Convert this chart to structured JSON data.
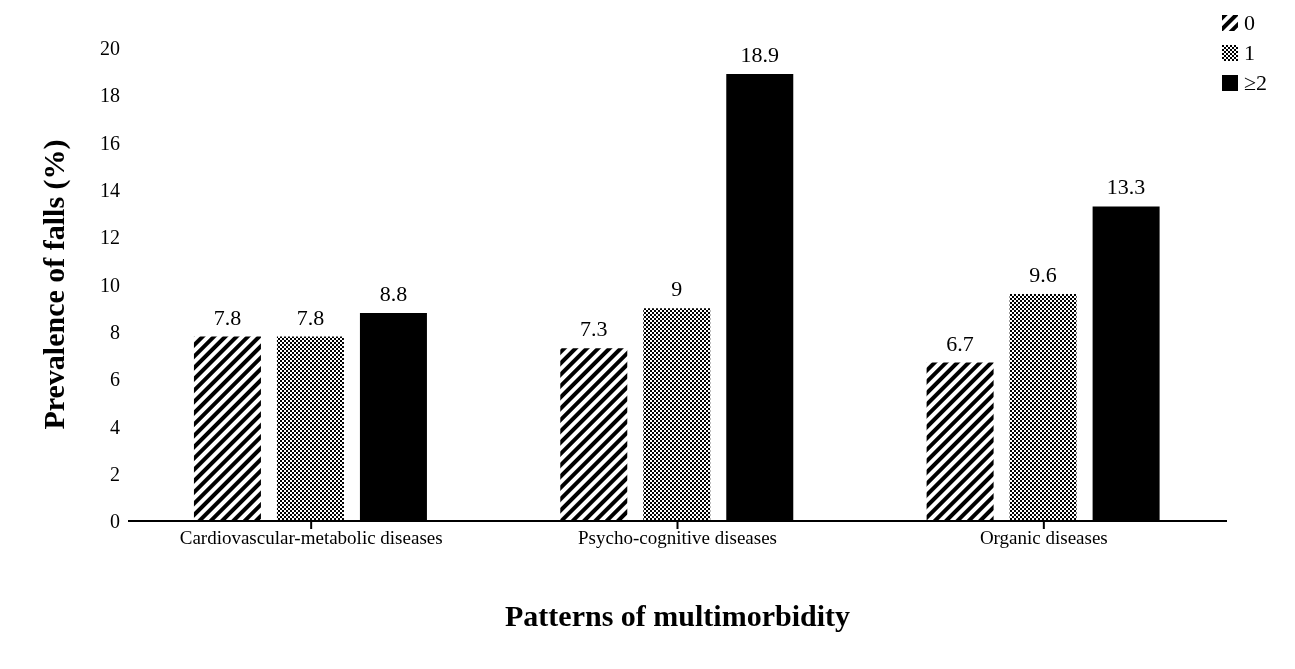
{
  "chart_data": {
    "type": "bar",
    "xlabel": "Patterns  of  multimorbidity",
    "ylabel": "Prevalence of falls (%)",
    "categories": [
      "Cardiovascular-metabolic diseases",
      "Psycho-cognitive diseases",
      "Organic diseases"
    ],
    "series": [
      {
        "name": "0",
        "color": "#000000",
        "values": [
          7.8,
          7.3,
          6.7
        ]
      },
      {
        "name": "1",
        "color": "#000000",
        "values": [
          7.8,
          9,
          9.6
        ]
      },
      {
        "name": "≥2",
        "color": "#000000",
        "values": [
          8.8,
          18.9,
          13.3
        ]
      }
    ],
    "ylim": [
      0,
      20
    ],
    "yticks": [
      0,
      2,
      4,
      6,
      8,
      10,
      12,
      14,
      16,
      18,
      20
    ],
    "data_labels": true,
    "legend": "top right",
    "grid": false
  }
}
